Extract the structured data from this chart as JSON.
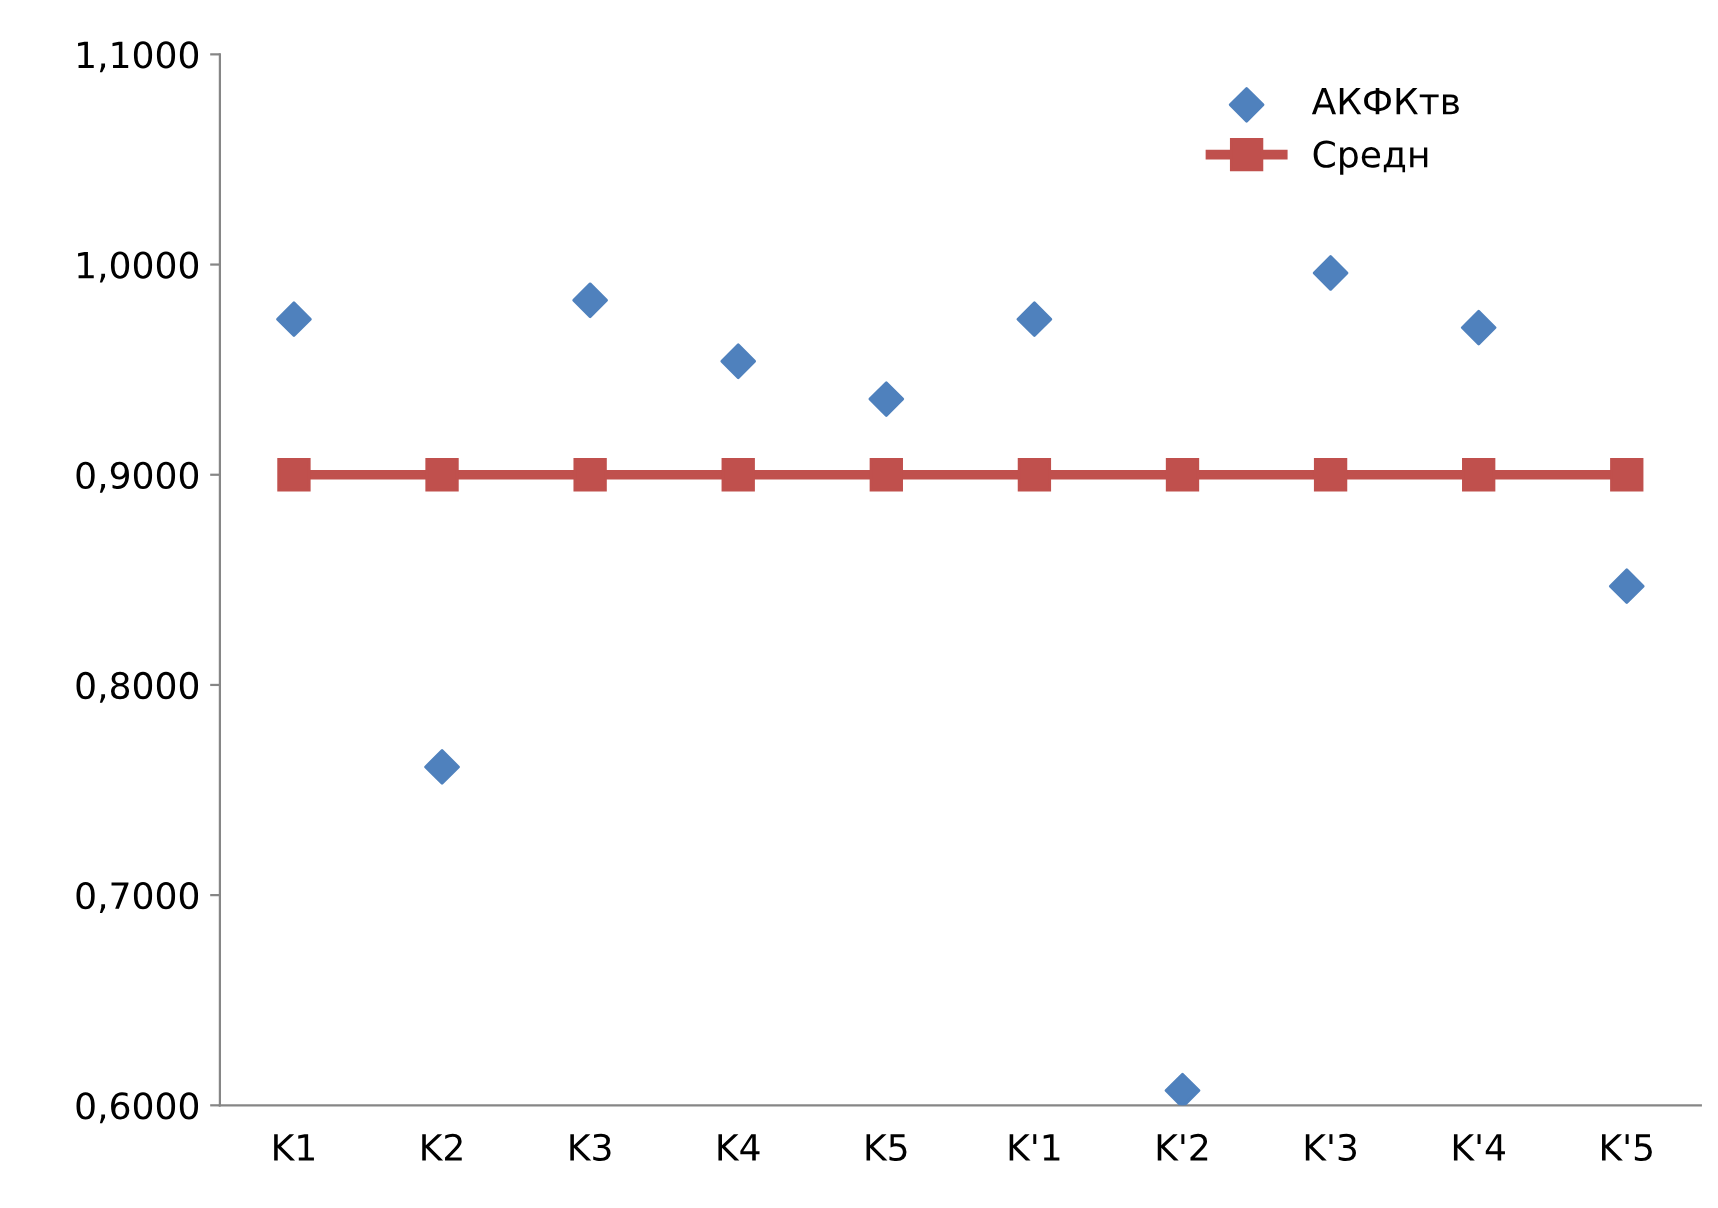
{
  "chart_data": {
    "type": "scatter",
    "categories": [
      "K1",
      "K2",
      "K3",
      "K4",
      "K5",
      "K'1",
      "K'2",
      "K'3",
      "K'4",
      "K'5"
    ],
    "series": [
      {
        "name": "АКФКтв",
        "marker": "diamond",
        "color": "#4f81bd",
        "values": [
          0.974,
          0.761,
          0.983,
          0.954,
          0.936,
          0.974,
          0.607,
          0.996,
          0.97,
          0.847
        ]
      },
      {
        "name": "Средн",
        "type": "line",
        "marker": "square",
        "color": "#c0504d",
        "values": [
          0.9,
          0.9,
          0.9,
          0.9,
          0.9,
          0.9,
          0.9,
          0.9,
          0.9,
          0.9
        ]
      }
    ],
    "ylim": [
      0.6,
      1.1
    ],
    "yticks": [
      {
        "value": 0.6,
        "label": "0,6000"
      },
      {
        "value": 0.7,
        "label": "0,7000"
      },
      {
        "value": 0.8,
        "label": "0,8000"
      },
      {
        "value": 0.9,
        "label": "0,9000"
      },
      {
        "value": 1.0,
        "label": "1,0000"
      },
      {
        "value": 1.1,
        "label": "1,1000"
      }
    ],
    "grid": false,
    "legend": "top right"
  }
}
